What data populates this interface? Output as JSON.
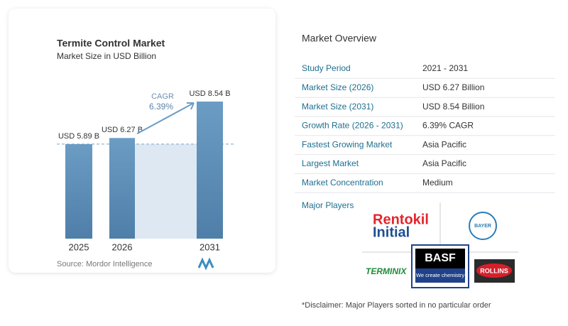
{
  "chart_data": {
    "type": "bar",
    "title": "Termite Control Market",
    "subtitle": "Market Size in USD Billion",
    "categories": [
      "2025",
      "2026",
      "2031"
    ],
    "values": [
      5.89,
      6.27,
      8.54
    ],
    "value_labels": [
      "USD 5.89 B",
      "USD 6.27 B",
      "USD 8.54 B"
    ],
    "color": "#5a8bb5",
    "cagr_label": "CAGR",
    "cagr_value": "6.39%",
    "source": "Source: Mordor Intelligence"
  },
  "market_overview": {
    "title": "Market Overview",
    "rows": [
      [
        "Study Period",
        "2021 - 2031"
      ],
      [
        "Market Size (2026)",
        "USD 6.27 Billion"
      ],
      [
        "Market Size (2031)",
        "USD 8.54 Billion"
      ],
      [
        "Growth Rate (2026 - 2031)",
        "6.39% CAGR"
      ],
      [
        "Fastest Growing Market",
        "Asia Pacific"
      ],
      [
        "Largest Market",
        "Asia Pacific"
      ],
      [
        "Market Concentration",
        "Medium"
      ]
    ]
  },
  "major_players": {
    "title": "Major Players",
    "logos": [
      [
        "Rentokil",
        "Initial"
      ],
      [
        "BAYER"
      ],
      [
        "BASF",
        "We create chemistry"
      ],
      [
        "TERMINIX"
      ],
      [
        "ROLLINS"
      ]
    ]
  },
  "disclaimer": "*Disclaimer: Major Players sorted in no particular order"
}
